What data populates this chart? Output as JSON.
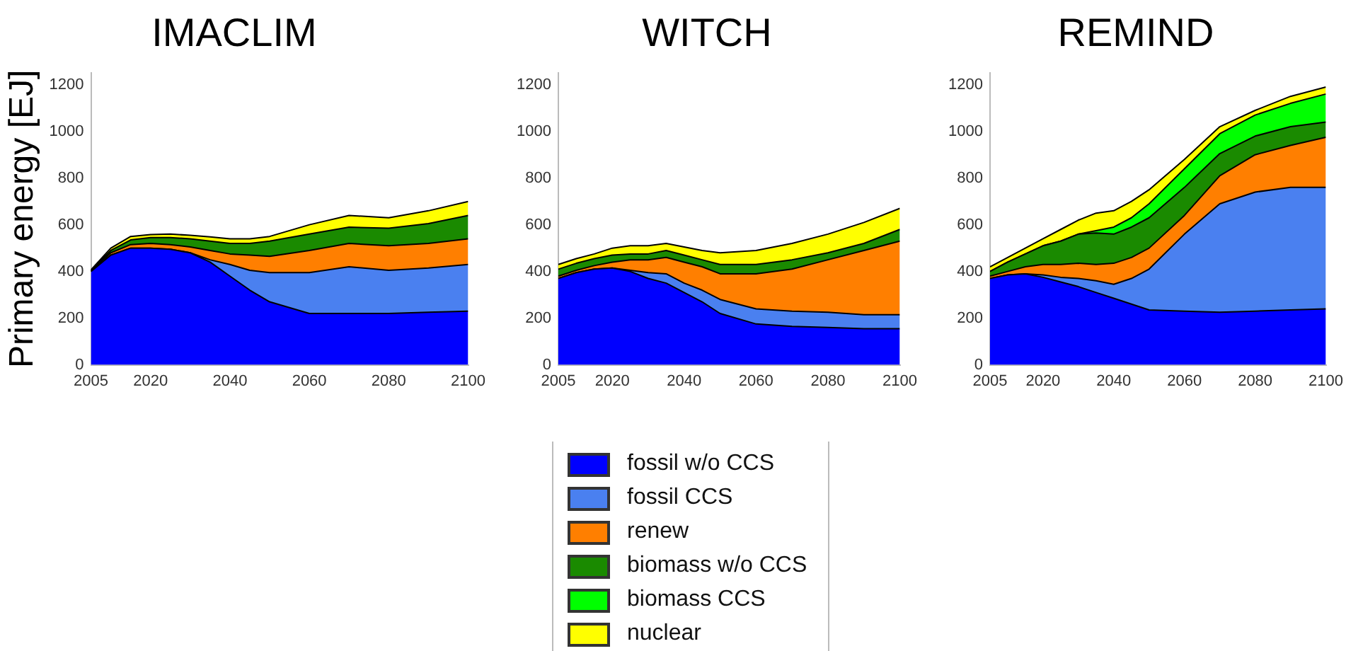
{
  "chart_data": [
    {
      "type": "area",
      "title": "IMACLIM",
      "ylabel": "Primary energy [EJ]",
      "stacked": true,
      "x": [
        2005,
        2010,
        2015,
        2020,
        2025,
        2030,
        2035,
        2040,
        2045,
        2050,
        2060,
        2070,
        2080,
        2090,
        2100
      ],
      "xlim": [
        2005,
        2100
      ],
      "xticks": [
        2005,
        2020,
        2040,
        2060,
        2080,
        2100
      ],
      "ylim": [
        0,
        1250
      ],
      "yticks": [
        0,
        200,
        400,
        600,
        800,
        1000,
        1200
      ],
      "series": [
        {
          "color": "#0000ff",
          "values": [
            400,
            470,
            500,
            500,
            495,
            480,
            440,
            380,
            320,
            270,
            220,
            220,
            220,
            225,
            230
          ]
        },
        {
          "color": "#4a80f0",
          "values": [
            0,
            0,
            0,
            0,
            0,
            0,
            10,
            50,
            85,
            125,
            175,
            200,
            185,
            190,
            200
          ]
        },
        {
          "color": "#ff7f00",
          "values": [
            2,
            10,
            15,
            20,
            20,
            25,
            40,
            45,
            65,
            70,
            95,
            100,
            105,
            105,
            110
          ]
        },
        {
          "color": "#1a8a00",
          "values": [
            3,
            10,
            20,
            25,
            30,
            35,
            40,
            45,
            50,
            65,
            70,
            70,
            75,
            85,
            100
          ]
        },
        {
          "color": "#ffff00",
          "values": [
            2,
            10,
            15,
            13,
            15,
            15,
            18,
            20,
            20,
            20,
            40,
            50,
            45,
            55,
            60
          ]
        }
      ]
    },
    {
      "type": "area",
      "title": "WITCH",
      "stacked": true,
      "x": [
        2005,
        2010,
        2015,
        2020,
        2025,
        2030,
        2035,
        2040,
        2045,
        2050,
        2060,
        2070,
        2080,
        2090,
        2100
      ],
      "xlim": [
        2005,
        2100
      ],
      "xticks": [
        2005,
        2020,
        2040,
        2060,
        2080,
        2100
      ],
      "ylim": [
        0,
        1250
      ],
      "yticks": [
        0,
        200,
        400,
        600,
        800,
        1000,
        1200
      ],
      "series": [
        {
          "color": "#0000ff",
          "values": [
            370,
            395,
            410,
            415,
            400,
            370,
            350,
            310,
            270,
            220,
            175,
            165,
            160,
            155,
            155
          ]
        },
        {
          "color": "#4a80f0",
          "values": [
            0,
            0,
            0,
            0,
            5,
            25,
            40,
            40,
            50,
            60,
            65,
            65,
            65,
            60,
            60
          ]
        },
        {
          "color": "#ff7f00",
          "values": [
            10,
            10,
            15,
            25,
            45,
            55,
            70,
            90,
            100,
            110,
            150,
            180,
            225,
            275,
            315
          ]
        },
        {
          "color": "#1a8a00",
          "values": [
            30,
            30,
            30,
            30,
            25,
            25,
            30,
            30,
            30,
            40,
            40,
            40,
            30,
            30,
            50
          ]
        },
        {
          "color": "#ffff00",
          "values": [
            20,
            20,
            20,
            30,
            35,
            35,
            30,
            35,
            40,
            50,
            60,
            70,
            80,
            90,
            90
          ]
        }
      ]
    },
    {
      "type": "area",
      "title": "REMIND",
      "stacked": true,
      "legend": "bottom",
      "x": [
        2005,
        2010,
        2015,
        2020,
        2025,
        2030,
        2035,
        2040,
        2045,
        2050,
        2060,
        2070,
        2080,
        2090,
        2100
      ],
      "xlim": [
        2005,
        2100
      ],
      "xticks": [
        2005,
        2020,
        2040,
        2060,
        2080,
        2100
      ],
      "ylim": [
        0,
        1250
      ],
      "yticks": [
        0,
        200,
        400,
        600,
        800,
        1000,
        1200
      ],
      "series": [
        {
          "name": "fossil w/o CCS",
          "color": "#0000ff",
          "values": [
            370,
            385,
            390,
            375,
            355,
            335,
            310,
            285,
            260,
            235,
            230,
            225,
            230,
            235,
            240
          ]
        },
        {
          "name": "fossil CCS",
          "color": "#4a80f0",
          "values": [
            0,
            0,
            0,
            10,
            20,
            35,
            50,
            60,
            110,
            175,
            330,
            465,
            510,
            525,
            520
          ]
        },
        {
          "name": "renew",
          "color": "#ff7f00",
          "values": [
            10,
            15,
            30,
            45,
            55,
            65,
            70,
            90,
            90,
            90,
            80,
            120,
            160,
            180,
            215
          ]
        },
        {
          "name": "biomass w/o CCS",
          "color": "#1a8a00",
          "values": [
            20,
            40,
            55,
            80,
            100,
            125,
            135,
            125,
            130,
            130,
            120,
            95,
            80,
            80,
            65
          ]
        },
        {
          "name": "biomass CCS",
          "color": "#00ff00",
          "values": [
            0,
            0,
            0,
            0,
            0,
            0,
            10,
            30,
            40,
            60,
            80,
            85,
            90,
            100,
            120
          ]
        },
        {
          "name": "nuclear",
          "color": "#ffff00",
          "values": [
            20,
            20,
            25,
            30,
            50,
            60,
            75,
            70,
            70,
            60,
            40,
            30,
            20,
            30,
            30
          ]
        }
      ]
    }
  ]
}
